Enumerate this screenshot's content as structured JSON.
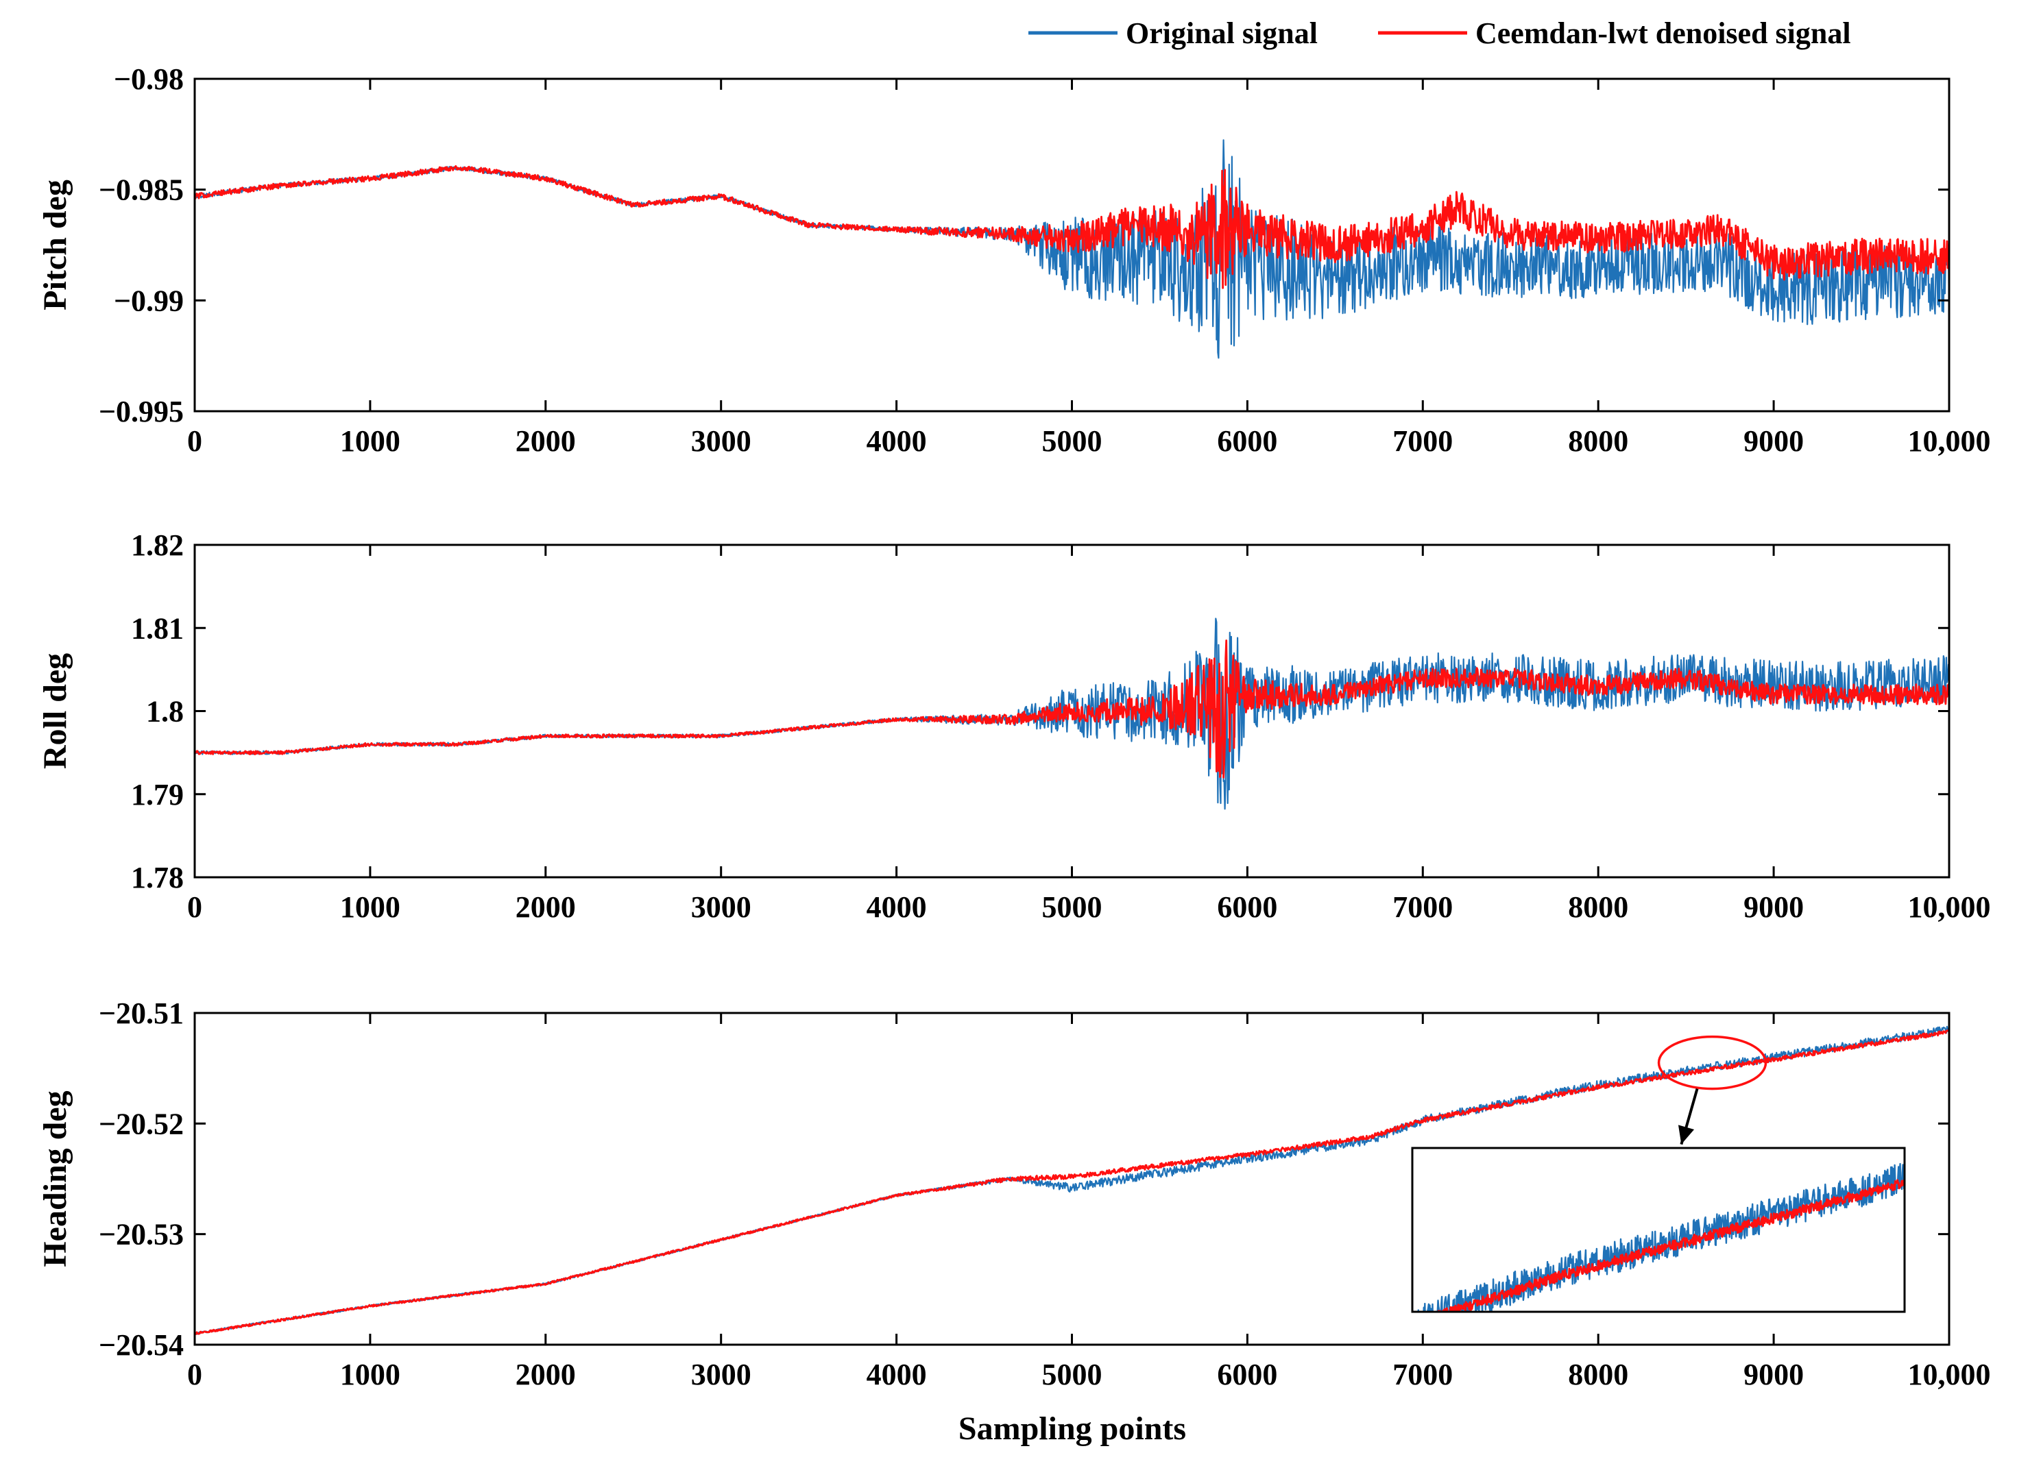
{
  "legend": {
    "original": "Original signal",
    "denoised": "Ceemdan-lwt denoised signal",
    "original_color": "#1f72b8",
    "denoised_color": "#ff1010"
  },
  "shared_xlabel": "Sampling points",
  "chart_data": [
    {
      "type": "line",
      "ylabel": "Pitch deg",
      "xlim": [
        0,
        10000
      ],
      "ylim": [
        -0.995,
        -0.98
      ],
      "xticks": [
        0,
        1000,
        2000,
        3000,
        4000,
        5000,
        6000,
        7000,
        8000,
        9000,
        10000
      ],
      "xtick_labels": [
        "0",
        "1000",
        "2000",
        "3000",
        "4000",
        "5000",
        "6000",
        "7000",
        "8000",
        "9000",
        "10,000"
      ],
      "yticks": [
        -0.995,
        -0.99,
        -0.985,
        -0.98
      ],
      "ytick_labels": [
        "−0.995",
        "−0.99",
        "−0.985",
        "−0.98"
      ],
      "series": [
        {
          "name": "Original signal",
          "x": [
            0,
            500,
            1000,
            1500,
            2000,
            2500,
            3000,
            3500,
            4000,
            4650,
            5000,
            5400,
            5700,
            5870,
            6000,
            6500,
            7000,
            7200,
            7500,
            8000,
            8500,
            8700,
            9000,
            9500,
            10000
          ],
          "y": [
            -0.9853,
            -0.9848,
            -0.9845,
            -0.984,
            -0.9845,
            -0.9857,
            -0.9853,
            -0.9866,
            -0.9868,
            -0.987,
            -0.988,
            -0.988,
            -0.9885,
            -0.988,
            -0.9882,
            -0.989,
            -0.988,
            -0.9882,
            -0.9885,
            -0.9885,
            -0.9882,
            -0.9882,
            -0.9895,
            -0.9892,
            -0.989
          ],
          "noise": [
            0.0001,
            0.0001,
            0.0001,
            0.0001,
            0.0001,
            0.0001,
            0.0001,
            0.0001,
            0.0001,
            0.0003,
            0.0018,
            0.0022,
            0.0028,
            0.0055,
            0.0028,
            0.0018,
            0.0016,
            0.0015,
            0.0015,
            0.0014,
            0.0014,
            0.0014,
            0.0017,
            0.0017,
            0.0017
          ]
        },
        {
          "name": "Ceemdan-lwt denoised signal",
          "x": [
            0,
            500,
            1000,
            1500,
            2000,
            2500,
            3000,
            3500,
            4000,
            4650,
            5000,
            5400,
            5700,
            5870,
            6000,
            6500,
            7000,
            7200,
            7500,
            8000,
            8500,
            8700,
            9000,
            9500,
            10000
          ],
          "y": [
            -0.9853,
            -0.9848,
            -0.9845,
            -0.984,
            -0.9845,
            -0.9857,
            -0.9853,
            -0.9866,
            -0.9868,
            -0.987,
            -0.9872,
            -0.9865,
            -0.987,
            -0.987,
            -0.9868,
            -0.9875,
            -0.9868,
            -0.9858,
            -0.987,
            -0.9872,
            -0.987,
            -0.9868,
            -0.9883,
            -0.988,
            -0.988
          ],
          "noise": [
            0.00012,
            0.00012,
            0.00012,
            0.00012,
            0.00012,
            0.00012,
            0.00012,
            0.00012,
            0.00012,
            0.0003,
            0.0007,
            0.0009,
            0.0014,
            0.003,
            0.0012,
            0.0008,
            0.0008,
            0.0008,
            0.0007,
            0.0007,
            0.0007,
            0.0007,
            0.0008,
            0.0008,
            0.0008
          ]
        }
      ]
    },
    {
      "type": "line",
      "ylabel": "Roll deg",
      "xlim": [
        0,
        10000
      ],
      "ylim": [
        1.78,
        1.82
      ],
      "xticks": [
        0,
        1000,
        2000,
        3000,
        4000,
        5000,
        6000,
        7000,
        8000,
        9000,
        10000
      ],
      "xtick_labels": [
        "0",
        "1000",
        "2000",
        "3000",
        "4000",
        "5000",
        "6000",
        "7000",
        "8000",
        "9000",
        "10,000"
      ],
      "yticks": [
        1.78,
        1.79,
        1.8,
        1.81,
        1.82
      ],
      "ytick_labels": [
        "1.78",
        "1.79",
        "1.8",
        "1.81",
        "1.82"
      ],
      "series": [
        {
          "name": "Original signal",
          "x": [
            0,
            500,
            1000,
            1500,
            2000,
            2500,
            3000,
            3500,
            4000,
            4650,
            5000,
            5500,
            5700,
            5870,
            6000,
            6500,
            7000,
            7500,
            8000,
            8500,
            9000,
            9500,
            10000
          ],
          "y": [
            1.795,
            1.795,
            1.796,
            1.796,
            1.797,
            1.797,
            1.797,
            1.798,
            1.799,
            1.799,
            1.8,
            1.8,
            1.801,
            1.8,
            1.802,
            1.802,
            1.804,
            1.804,
            1.803,
            1.804,
            1.803,
            1.803,
            1.804
          ],
          "noise": [
            0.0002,
            0.0002,
            0.0002,
            0.0002,
            0.0002,
            0.0002,
            0.0002,
            0.0002,
            0.0002,
            0.0008,
            0.003,
            0.004,
            0.006,
            0.013,
            0.004,
            0.003,
            0.003,
            0.003,
            0.003,
            0.003,
            0.003,
            0.003,
            0.003
          ]
        },
        {
          "name": "Ceemdan-lwt denoised signal",
          "x": [
            0,
            500,
            1000,
            1500,
            2000,
            2500,
            3000,
            3500,
            4000,
            4650,
            5000,
            5500,
            5700,
            5870,
            6000,
            6500,
            7000,
            7500,
            8000,
            8500,
            9000,
            9500,
            10000
          ],
          "y": [
            1.795,
            1.795,
            1.796,
            1.796,
            1.797,
            1.797,
            1.797,
            1.798,
            1.799,
            1.799,
            1.8,
            1.8,
            1.801,
            1.8,
            1.802,
            1.802,
            1.804,
            1.804,
            1.803,
            1.804,
            1.802,
            1.802,
            1.802
          ],
          "noise": [
            0.0002,
            0.0002,
            0.0002,
            0.0002,
            0.0002,
            0.0002,
            0.0002,
            0.0002,
            0.0002,
            0.0006,
            0.0012,
            0.0018,
            0.004,
            0.009,
            0.002,
            0.0012,
            0.0012,
            0.0012,
            0.0012,
            0.0012,
            0.0012,
            0.0012,
            0.0012
          ]
        }
      ]
    },
    {
      "type": "line",
      "ylabel": "Heading deg",
      "xlim": [
        0,
        10000
      ],
      "ylim": [
        -20.54,
        -20.51
      ],
      "xticks": [
        0,
        1000,
        2000,
        3000,
        4000,
        5000,
        6000,
        7000,
        8000,
        9000,
        10000
      ],
      "xtick_labels": [
        "0",
        "1000",
        "2000",
        "3000",
        "4000",
        "5000",
        "6000",
        "7000",
        "8000",
        "9000",
        "10,000"
      ],
      "yticks": [
        -20.54,
        -20.53,
        -20.52,
        -20.51
      ],
      "ytick_labels": [
        "−20.54",
        "−20.53",
        "−20.52",
        "−20.51"
      ],
      "series": [
        {
          "name": "Original signal",
          "x": [
            0,
            1000,
            2000,
            3000,
            4000,
            4650,
            5000,
            6000,
            6700,
            7000,
            8000,
            9000,
            10000
          ],
          "y": [
            -20.539,
            -20.5365,
            -20.5345,
            -20.5305,
            -20.5265,
            -20.525,
            -20.5258,
            -20.5232,
            -20.5215,
            -20.5197,
            -20.5165,
            -20.514,
            -20.5115
          ],
          "noise": [
            0.0001,
            0.0001,
            0.0001,
            0.0001,
            0.0001,
            0.0002,
            0.0004,
            0.0004,
            0.0004,
            0.0004,
            0.0004,
            0.0004,
            0.0004
          ]
        },
        {
          "name": "Ceemdan-lwt denoised signal",
          "x": [
            0,
            1000,
            2000,
            3000,
            4000,
            4650,
            5000,
            6000,
            6700,
            7000,
            8000,
            9000,
            10000
          ],
          "y": [
            -20.539,
            -20.5365,
            -20.5345,
            -20.5305,
            -20.5265,
            -20.525,
            -20.5248,
            -20.5228,
            -20.5212,
            -20.5197,
            -20.5167,
            -20.5142,
            -20.5117
          ],
          "noise": [
            0.0001,
            0.0001,
            0.0001,
            0.0001,
            0.0001,
            0.0002,
            0.0002,
            0.0002,
            0.0002,
            0.0002,
            0.0002,
            0.0002,
            0.0002
          ]
        }
      ],
      "annotations": [
        {
          "type": "ellipse",
          "x": 8650,
          "y": -20.5145
        },
        {
          "type": "arrow",
          "from": [
            8650,
            -20.5145
          ],
          "to": [
            8200,
            -20.5225
          ]
        },
        {
          "type": "inset",
          "xlim": [
            7200,
            9800
          ],
          "ylim": [
            -20.5185,
            -20.5105
          ]
        }
      ]
    }
  ]
}
